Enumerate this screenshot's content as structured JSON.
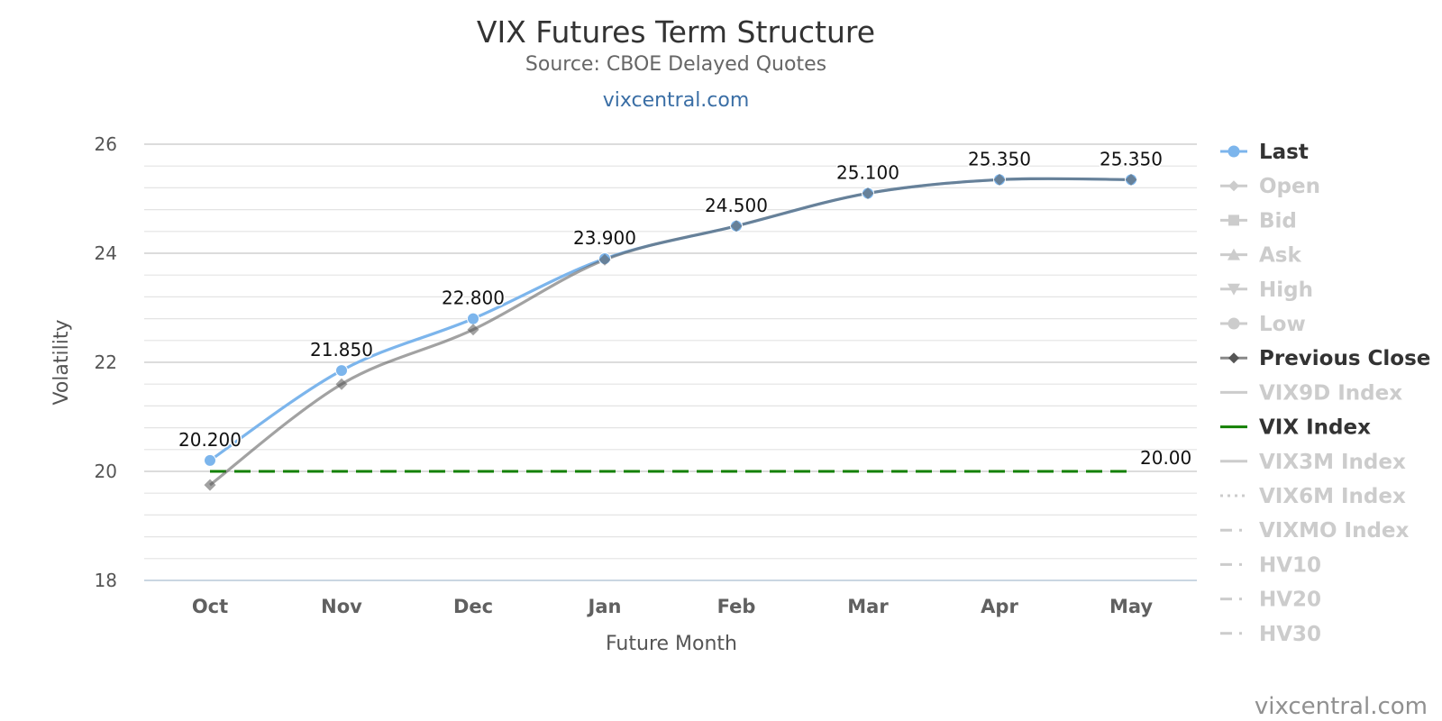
{
  "title": "VIX Futures Term Structure",
  "subtitle": "Source: CBOE Delayed Quotes",
  "link_text": "vixcentral.com",
  "credit": "vixcentral.com",
  "colors": {
    "last": "#7cb5ec",
    "previous_close": "#a0a0a0",
    "overlap": "#5a7fa3",
    "vix_index": "#138000",
    "legend_active": "#333333",
    "legend_inactive": "#cccccc"
  },
  "chart_data": {
    "type": "line",
    "categories": [
      "Oct",
      "Nov",
      "Dec",
      "Jan",
      "Feb",
      "Mar",
      "Apr",
      "May"
    ],
    "xlabel": "Future Month",
    "ylabel": "Volatility",
    "ylim": [
      18,
      26
    ],
    "yticks": [
      18,
      20,
      22,
      24,
      26
    ],
    "grid": true,
    "legend_position": "right",
    "series": [
      {
        "name": "Last",
        "values": [
          20.2,
          21.85,
          22.8,
          23.9,
          24.5,
          25.1,
          25.35,
          25.35
        ],
        "labels": [
          "20.200",
          "21.850",
          "22.800",
          "23.900",
          "24.500",
          "25.100",
          "25.350",
          "25.350"
        ]
      },
      {
        "name": "Previous Close",
        "values": [
          19.75,
          21.6,
          22.6,
          23.88,
          24.5,
          25.1,
          25.35,
          25.35
        ]
      },
      {
        "name": "VIX Index",
        "values": [
          20.0,
          20.0,
          20.0,
          20.0,
          20.0,
          20.0,
          20.0,
          20.0
        ],
        "end_label": "20.00"
      }
    ],
    "legend": [
      {
        "label": "Last",
        "symbol": "circle",
        "active": true
      },
      {
        "label": "Open",
        "symbol": "diamond",
        "active": false
      },
      {
        "label": "Bid",
        "symbol": "square",
        "active": false
      },
      {
        "label": "Ask",
        "symbol": "triangle",
        "active": false
      },
      {
        "label": "High",
        "symbol": "triangle-down",
        "active": false
      },
      {
        "label": "Low",
        "symbol": "circle",
        "active": false
      },
      {
        "label": "Previous Close",
        "symbol": "diamond",
        "active": true
      },
      {
        "label": "VIX9D Index",
        "symbol": "line",
        "active": false
      },
      {
        "label": "VIX Index",
        "symbol": "line",
        "active": true
      },
      {
        "label": "VIX3M Index",
        "symbol": "line",
        "active": false
      },
      {
        "label": "VIX6M Index",
        "symbol": "dot",
        "active": false
      },
      {
        "label": "VIXMO Index",
        "symbol": "dashdot",
        "active": false
      },
      {
        "label": "HV10",
        "symbol": "dashdot",
        "active": false
      },
      {
        "label": "HV20",
        "symbol": "dashdot",
        "active": false
      },
      {
        "label": "HV30",
        "symbol": "dashdot",
        "active": false
      }
    ]
  }
}
